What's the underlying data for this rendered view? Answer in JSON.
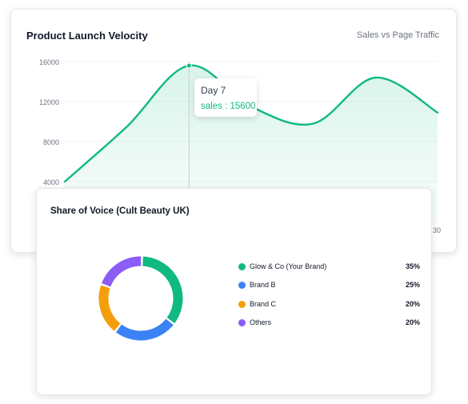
{
  "velocity_card": {
    "title": "Product Launch Velocity",
    "subtitle": "Sales vs Page Traffic",
    "tooltip": {
      "label": "Day 7",
      "series": "sales",
      "value": 15600
    }
  },
  "sov_card": {
    "title": "Share of Voice (Cult Beauty UK)"
  },
  "chart_data": [
    {
      "type": "area",
      "title": "Product Launch Velocity",
      "subtitle": "Sales vs Page Traffic",
      "series": [
        {
          "name": "sales",
          "color": "#10b981",
          "points": [
            {
              "x": 1,
              "y": 4000
            },
            {
              "x": 4,
              "y": 9500
            },
            {
              "x": 7,
              "y": 15600
            },
            {
              "x": 10,
              "y": 11500
            },
            {
              "x": 13,
              "y": 9800
            },
            {
              "x": 16,
              "y": 14400
            },
            {
              "x": 19,
              "y": 10900
            }
          ]
        }
      ],
      "x_range": [
        1,
        19
      ],
      "ylim": [
        4000,
        16000
      ],
      "y_ticks": [
        4000,
        8000,
        12000,
        16000
      ],
      "x_tick_partial": "30",
      "grid": true,
      "highlight_x": 7
    },
    {
      "type": "pie",
      "variant": "donut",
      "title": "Share of Voice (Cult Beauty UK)",
      "slices": [
        {
          "label": "Glow & Co (Your Brand)",
          "value": 35,
          "display": "35%",
          "color": "#10b981"
        },
        {
          "label": "Brand B",
          "value": 25,
          "display": "25%",
          "color": "#3b82f6"
        },
        {
          "label": "Brand C",
          "value": 20,
          "display": "20%",
          "color": "#f59e0b"
        },
        {
          "label": "Others",
          "value": 20,
          "display": "20%",
          "color": "#8b5cf6"
        }
      ]
    }
  ]
}
